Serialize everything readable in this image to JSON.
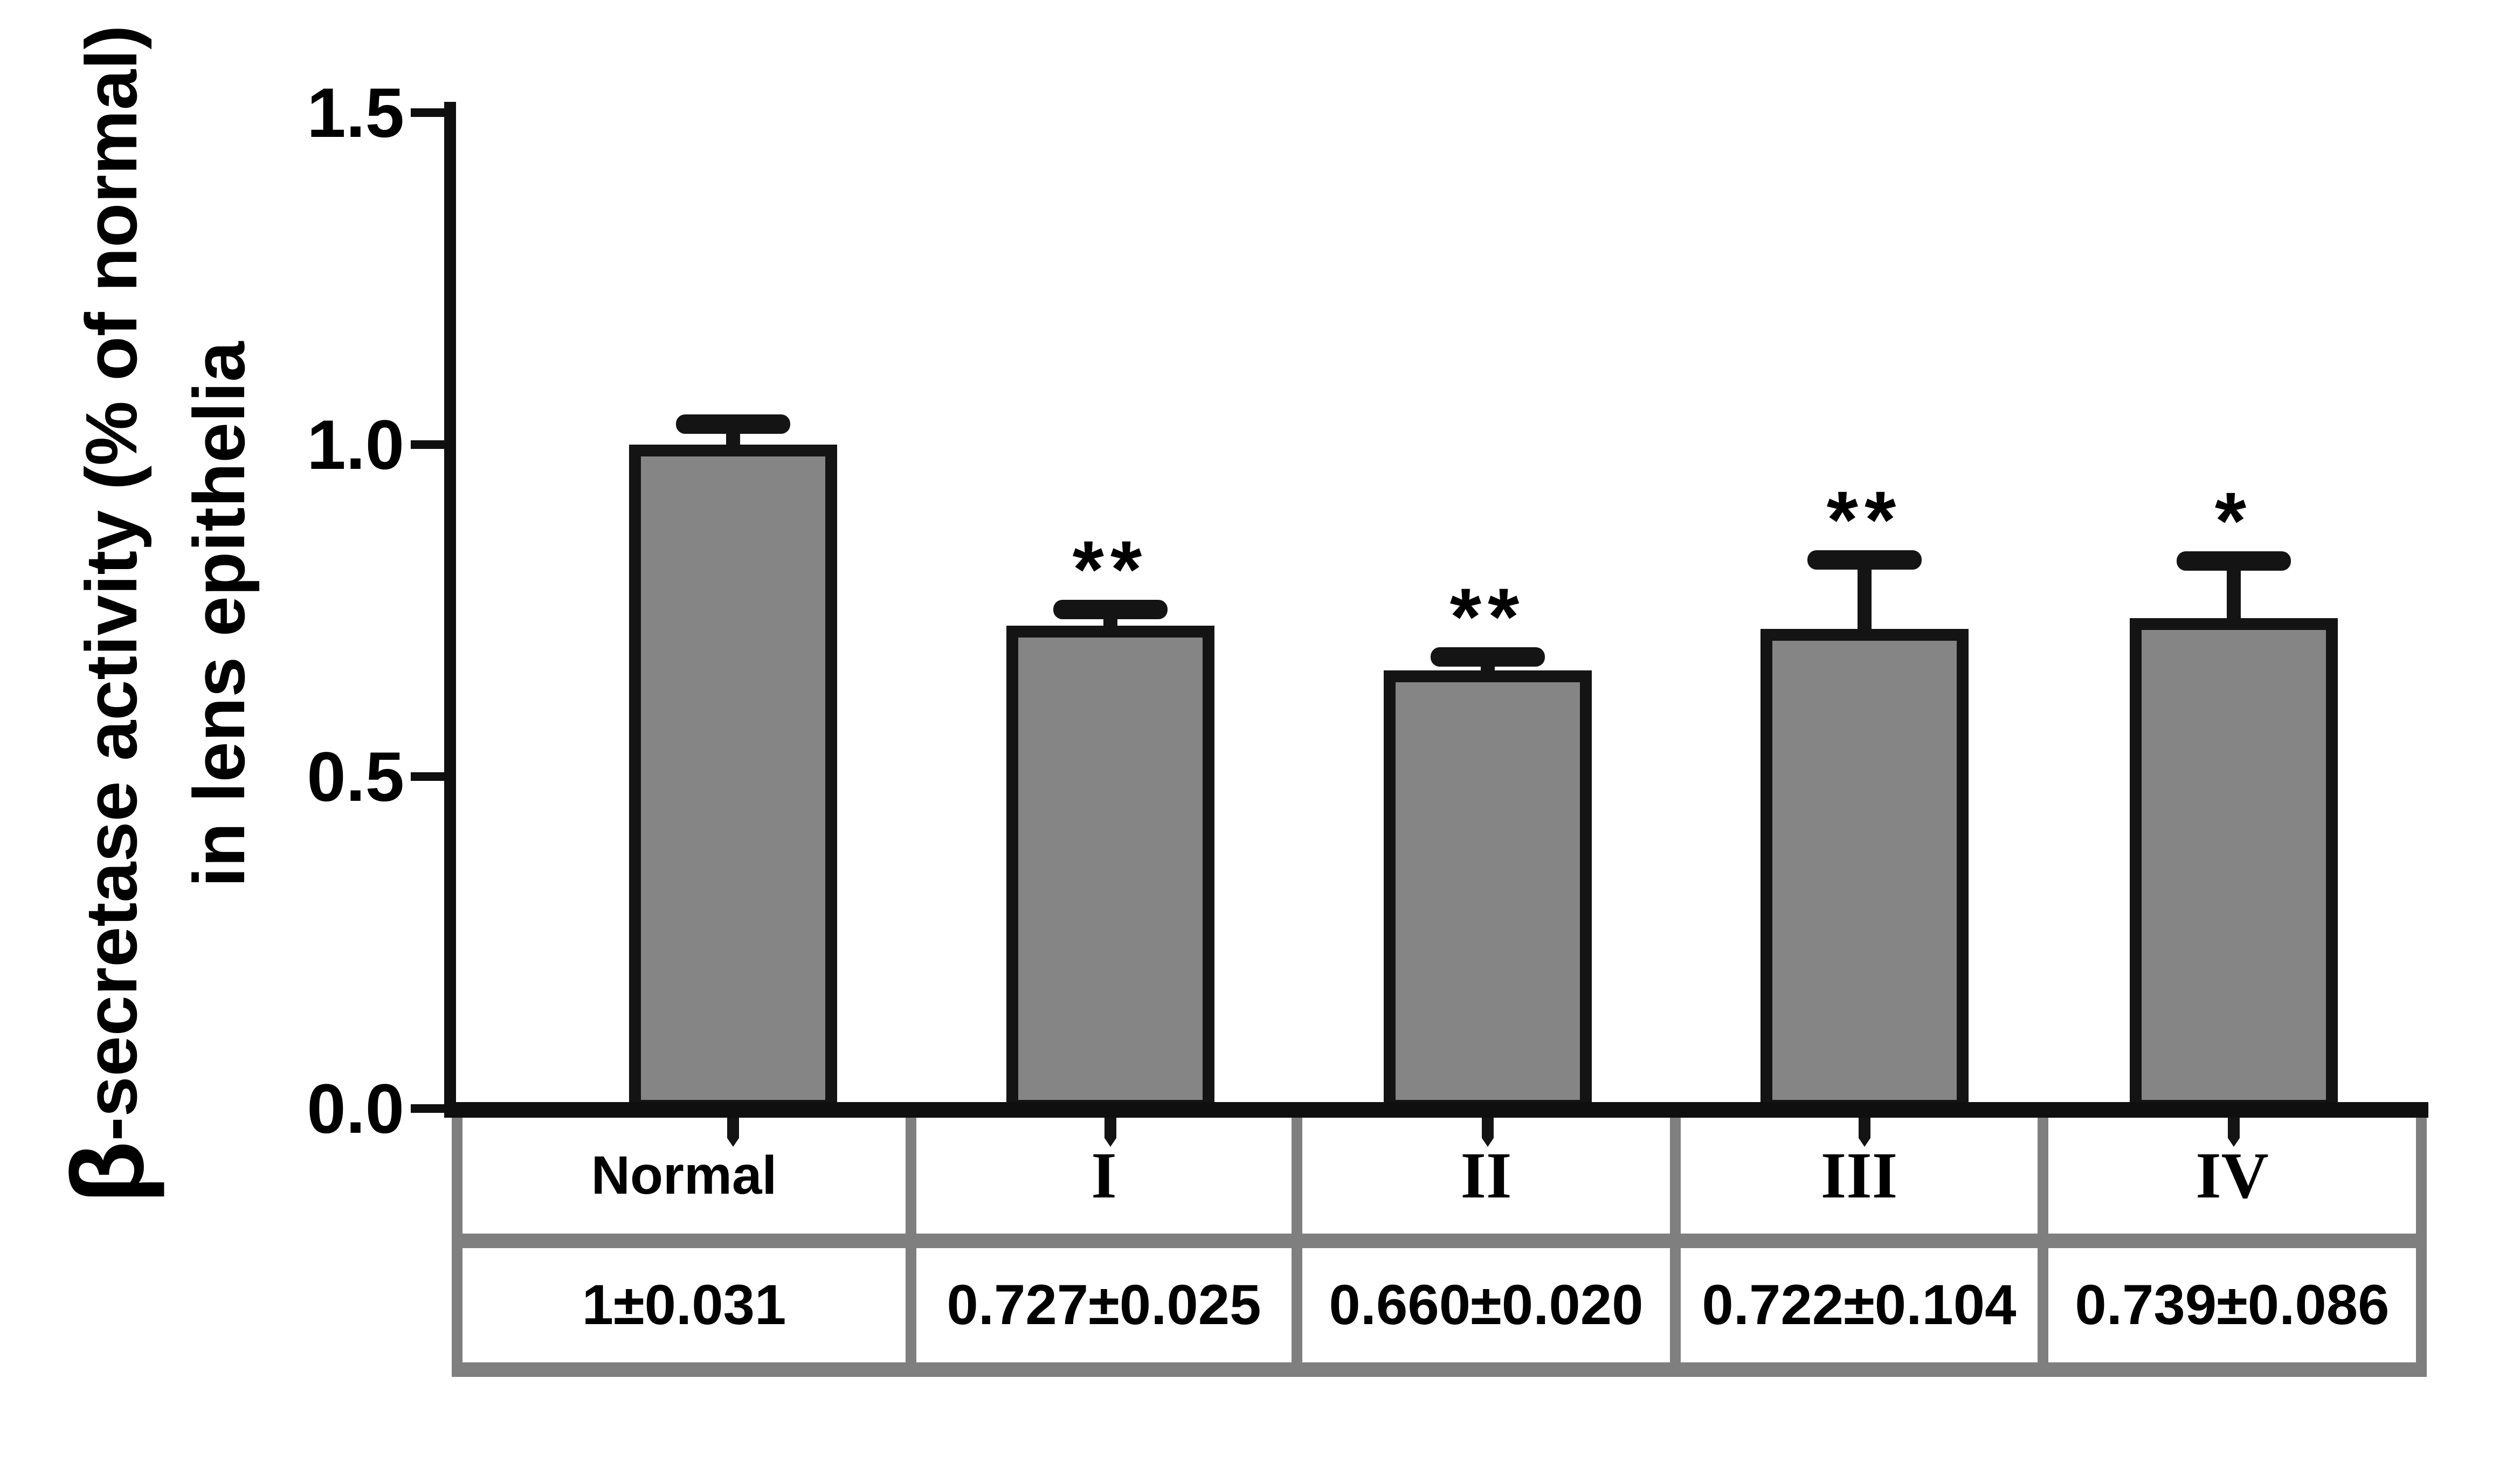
{
  "figure": {
    "y_axis": {
      "label_beta": "β",
      "label_line1_rest": "-secretase activity (% of normal)",
      "label_line2": "in lens epithelia",
      "tick_labels": [
        "0.0",
        "0.5",
        "1.0",
        "1.5"
      ]
    },
    "colors": {
      "background": "#ffffff",
      "bar_fill": "#858585",
      "bar_border": "#141414",
      "axis": "#0f0f0f",
      "table_border": "#7f7f7f",
      "text": "#000000"
    }
  },
  "chart_data": {
    "type": "bar",
    "title": "",
    "xlabel": "",
    "ylabel": "β-secretase activity (% of normal) in lens epithelia",
    "categories": [
      "Normal",
      "I",
      "II",
      "III",
      "IV"
    ],
    "values": [
      1,
      0.727,
      0.66,
      0.722,
      0.739
    ],
    "errors": [
      0.031,
      0.025,
      0.02,
      0.104,
      0.086
    ],
    "significance": [
      "",
      "**",
      "**",
      "**",
      "*"
    ],
    "table_values": [
      "1±0.031",
      "0.727±0.025",
      "0.660±0.020",
      "0.722±0.104",
      "0.739±0.086"
    ],
    "category_font": [
      "sans",
      "serif",
      "serif",
      "serif",
      "serif"
    ],
    "yticks": [
      0.0,
      0.5,
      1.0,
      1.5
    ],
    "ylim": [
      0,
      1.5
    ],
    "grid": false,
    "legend": false,
    "error_bar_style": "upper-cap-only"
  }
}
